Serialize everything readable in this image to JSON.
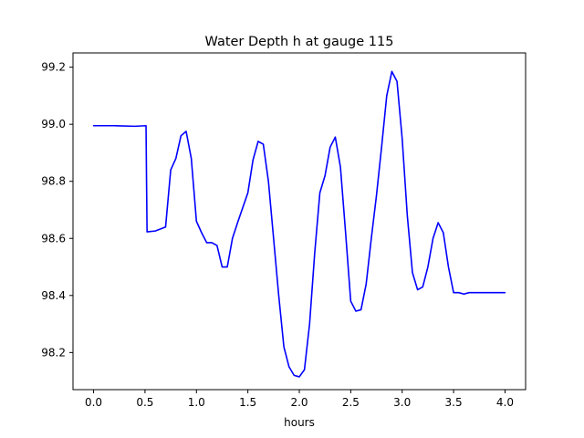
{
  "chart_data": {
    "type": "line",
    "title": "Water Depth h at gauge 115",
    "xlabel": "hours",
    "ylabel": "",
    "xlim": [
      -0.2,
      4.2
    ],
    "ylim": [
      98.07,
      99.25
    ],
    "grid": false,
    "legend": "none",
    "x_ticks": [
      0.0,
      0.5,
      1.0,
      1.5,
      2.0,
      2.5,
      3.0,
      3.5,
      4.0
    ],
    "x_tick_labels": [
      "0.0",
      "0.5",
      "1.0",
      "1.5",
      "2.0",
      "2.5",
      "3.0",
      "3.5",
      "4.0"
    ],
    "y_ticks": [
      98.2,
      98.4,
      98.6,
      98.8,
      99.0,
      99.2
    ],
    "y_tick_labels": [
      "98.2",
      "98.4",
      "98.6",
      "98.8",
      "99.0",
      "99.2"
    ],
    "series": [
      {
        "color": "#0000ff",
        "x": [
          0.0,
          0.2,
          0.4,
          0.51,
          0.515,
          0.52,
          0.6,
          0.7,
          0.75,
          0.8,
          0.85,
          0.9,
          0.95,
          1.0,
          1.05,
          1.1,
          1.15,
          1.2,
          1.25,
          1.3,
          1.35,
          1.4,
          1.5,
          1.55,
          1.6,
          1.65,
          1.7,
          1.75,
          1.8,
          1.85,
          1.9,
          1.95,
          2.0,
          2.05,
          2.1,
          2.15,
          2.2,
          2.25,
          2.3,
          2.35,
          2.4,
          2.45,
          2.5,
          2.55,
          2.6,
          2.65,
          2.7,
          2.75,
          2.8,
          2.85,
          2.9,
          2.95,
          3.0,
          3.05,
          3.1,
          3.15,
          3.2,
          3.25,
          3.3,
          3.35,
          3.4,
          3.45,
          3.5,
          3.55,
          3.6,
          3.65,
          3.7,
          3.75,
          3.8,
          3.85,
          3.9,
          3.95,
          4.0
        ],
        "y": [
          98.995,
          98.995,
          98.993,
          98.995,
          98.8,
          98.623,
          98.626,
          98.64,
          98.84,
          98.88,
          98.96,
          98.975,
          98.88,
          98.66,
          98.62,
          98.585,
          98.585,
          98.575,
          98.5,
          98.5,
          98.6,
          98.655,
          98.76,
          98.875,
          98.94,
          98.93,
          98.8,
          98.6,
          98.4,
          98.22,
          98.15,
          98.12,
          98.115,
          98.14,
          98.3,
          98.55,
          98.76,
          98.82,
          98.92,
          98.955,
          98.85,
          98.62,
          98.38,
          98.345,
          98.35,
          98.44,
          98.6,
          98.75,
          98.92,
          99.1,
          99.185,
          99.15,
          98.95,
          98.68,
          98.48,
          98.42,
          98.43,
          98.5,
          98.6,
          98.655,
          98.62,
          98.5,
          98.41,
          98.41,
          98.405,
          98.41,
          98.41,
          98.41,
          98.41,
          98.41,
          98.41,
          98.41,
          98.41
        ]
      }
    ]
  }
}
